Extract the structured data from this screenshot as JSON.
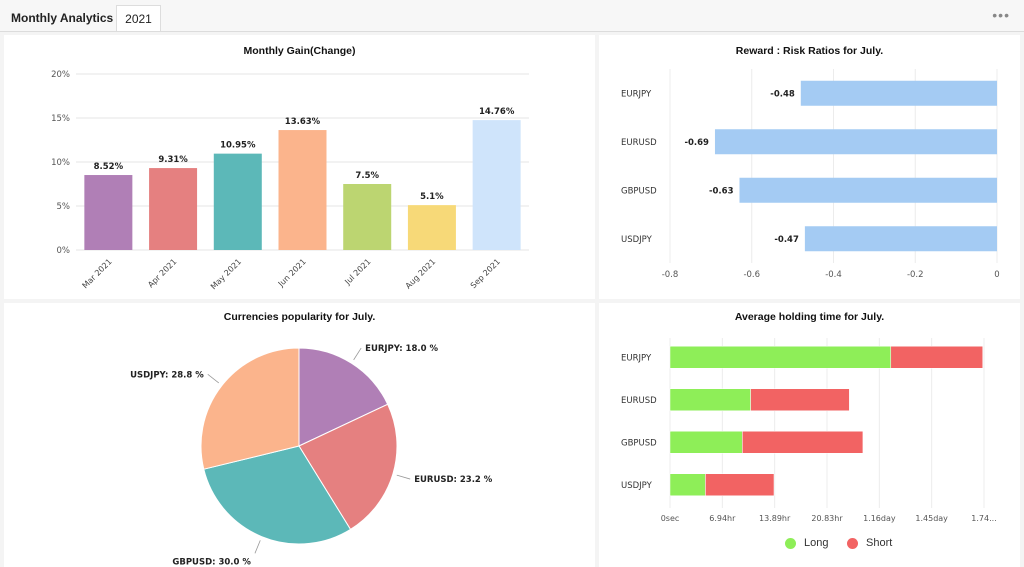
{
  "header": {
    "tabs": [
      {
        "label": "Monthly Analytics"
      },
      {
        "label": "2021"
      }
    ],
    "menu_icon": "more-horizontal-icon"
  },
  "panels": {
    "monthly_gain_title": "Monthly Gain(Change)",
    "risk_title": "Reward : Risk Ratios for July.",
    "popularity_title": "Currencies popularity for July.",
    "holding_title": "Average holding time for July."
  },
  "chart_data": [
    {
      "id": "monthly-gain",
      "type": "bar",
      "title": "Monthly Gain(Change)",
      "categories": [
        "Mar 2021",
        "Apr 2021",
        "May 2021",
        "Jun 2021",
        "Jul 2021",
        "Aug 2021",
        "Sep 2021"
      ],
      "values": [
        8.52,
        9.31,
        10.95,
        13.63,
        7.5,
        5.1,
        14.76
      ],
      "data_labels": [
        "8.52%",
        "9.31%",
        "10.95%",
        "13.63%",
        "7.5%",
        "5.1%",
        "14.76%"
      ],
      "colors": [
        "#b07fb6",
        "#e58080",
        "#5cb8b8",
        "#fbb48c",
        "#bcd571",
        "#f7d978",
        "#cfe4fb"
      ],
      "yticks": [
        "0%",
        "5%",
        "10%",
        "15%",
        "20%"
      ],
      "ylim": [
        0,
        20
      ],
      "grid": true
    },
    {
      "id": "reward-risk",
      "type": "bar",
      "orientation": "horizontal",
      "title": "Reward : Risk Ratios for July.",
      "categories": [
        "EURJPY",
        "EURUSD",
        "GBPUSD",
        "USDJPY"
      ],
      "values": [
        -0.48,
        -0.69,
        -0.63,
        -0.47
      ],
      "data_labels": [
        "-0.48",
        "-0.69",
        "-0.63",
        "-0.47"
      ],
      "color": "#a4cbf3",
      "xticks": [
        "-0.8",
        "-0.6",
        "-0.4",
        "-0.2",
        "0"
      ],
      "xlim": [
        -0.8,
        0
      ],
      "grid": true
    },
    {
      "id": "currency-popularity",
      "type": "pie",
      "title": "Currencies popularity for July.",
      "slices": [
        {
          "label": "EURJPY: 18.0 %",
          "value": 18.0,
          "color": "#b07fb6"
        },
        {
          "label": "EURUSD: 23.2 %",
          "value": 23.2,
          "color": "#e58080"
        },
        {
          "label": "GBPUSD: 30.0 %",
          "value": 30.0,
          "color": "#5cb8b8"
        },
        {
          "label": "USDJPY: 28.8 %",
          "value": 28.8,
          "color": "#fbb48c"
        }
      ]
    },
    {
      "id": "holding-time",
      "type": "bar",
      "orientation": "horizontal",
      "stacked": true,
      "title": "Average holding time for July.",
      "categories": [
        "EURJPY",
        "EURUSD",
        "GBPUSD",
        "USDJPY"
      ],
      "xticks": [
        "0sec",
        "6.94hr",
        "13.89hr",
        "20.83hr",
        "1.16day",
        "1.45day",
        "1.74..."
      ],
      "xlim_hours": [
        0,
        41.67
      ],
      "series": [
        {
          "name": "Long",
          "color": "#8eee58",
          "values_hours": [
            29.3,
            10.7,
            9.6,
            4.7
          ]
        },
        {
          "name": "Short",
          "color": "#f26363",
          "values_hours": [
            12.2,
            13.1,
            16.0,
            9.1
          ]
        }
      ],
      "legend_position": "bottom",
      "grid": true
    }
  ]
}
